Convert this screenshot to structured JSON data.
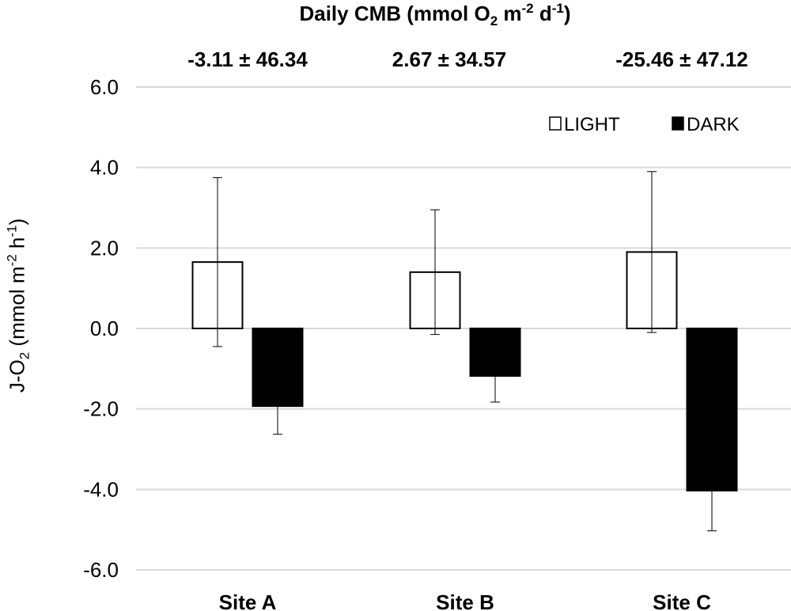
{
  "header": {
    "title_main": "Daily CMB (mmol O",
    "title_o2_sub": "2",
    "title_m": " m",
    "title_m_sup": "-2",
    "title_d": " d",
    "title_d_sup": "-1",
    "title_close": ")"
  },
  "chart_data": {
    "type": "bar",
    "categories": [
      "Site A",
      "Site B",
      "Site C"
    ],
    "series": [
      {
        "name": "LIGHT",
        "values": [
          1.65,
          1.4,
          1.9
        ],
        "errors": [
          2.1,
          1.55,
          2.0
        ],
        "fill": "#ffffff"
      },
      {
        "name": "DARK",
        "values": [
          -1.93,
          -1.18,
          -4.03
        ],
        "errors": [
          0.7,
          0.65,
          1.0
        ],
        "fill": "#000000"
      }
    ],
    "cmb_labels": [
      "-3.11 ± 46.34",
      "2.67 ± 34.57",
      "-25.46 ± 47.12"
    ],
    "ylim": [
      -6.0,
      6.0
    ],
    "yticks": [
      6.0,
      4.0,
      2.0,
      0.0,
      -2.0,
      -4.0,
      -6.0
    ],
    "ytick_labels": [
      "6.0",
      "4.0",
      "2.0",
      "0.0",
      "-2.0",
      "-4.0",
      "-6.0"
    ],
    "ylabel_parts": {
      "main": "J-O",
      "o2_sub": "2",
      "unit": " (mmol m",
      "m_sup": "-2",
      "h": " h",
      "h_sup": "-1",
      "close": ")"
    },
    "legend_position": "top-right",
    "grid": true,
    "colors": {
      "grid": "#d9d9d9",
      "bar_edge": "#000000",
      "text": "#000000"
    }
  }
}
